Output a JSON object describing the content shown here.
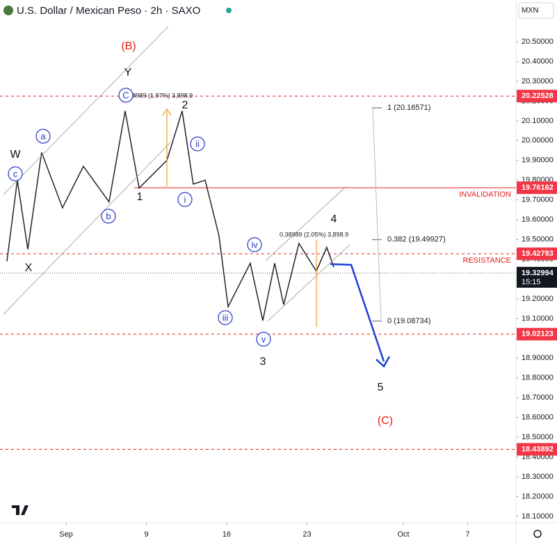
{
  "chart_data": {
    "type": "line",
    "title": "U.S. Dollar / Mexican Peso · 2h · SAXO",
    "currency": "MXN",
    "color": "#1e222d",
    "x": [
      -3.68,
      -3.03,
      -2.38,
      -1.52,
      -0.22,
      1.08,
      2.68,
      3.68,
      4.55,
      6.28,
      7.23,
      7.92,
      8.66,
      9.52,
      10.09,
      11.47,
      12.25,
      12.99,
      13.55,
      14.5,
      15.58,
      16.23,
      16.67
    ],
    "values": [
      19.39,
      19.8,
      19.45,
      19.94,
      19.66,
      19.87,
      19.69,
      20.15,
      19.76,
      19.9,
      20.15,
      19.78,
      19.8,
      19.52,
      19.16,
      19.38,
      19.09,
      19.38,
      19.17,
      19.48,
      19.34,
      19.46,
      19.36
    ],
    "xlim": [
      -4.11,
      28.01
    ],
    "ylim": [
      18.068,
      20.711
    ],
    "xticks": [
      {
        "value": 0,
        "label": "Sep"
      },
      {
        "value": 5,
        "label": "9"
      },
      {
        "value": 10,
        "label": "16"
      },
      {
        "value": 15,
        "label": "23"
      },
      {
        "value": 21,
        "label": "Oct"
      },
      {
        "value": 25,
        "label": "7"
      }
    ],
    "yticks": [
      {
        "value": 18.1,
        "label": "18.10000"
      },
      {
        "value": 18.2,
        "label": "18.20000"
      },
      {
        "value": 18.3,
        "label": "18.30000"
      },
      {
        "value": 18.4,
        "label": "18.40000"
      },
      {
        "value": 18.5,
        "label": "18.50000"
      },
      {
        "value": 18.6,
        "label": "18.60000"
      },
      {
        "value": 18.7,
        "label": "18.70000"
      },
      {
        "value": 18.8,
        "label": "18.80000"
      },
      {
        "value": 18.9,
        "label": "18.90000"
      },
      {
        "value": 19.0,
        "label": "19.00000"
      },
      {
        "value": 19.1,
        "label": "19.10000"
      },
      {
        "value": 19.2,
        "label": "19.20000"
      },
      {
        "value": 19.3,
        "label": "19.30000"
      },
      {
        "value": 19.4,
        "label": "19.40000"
      },
      {
        "value": 19.5,
        "label": "19.50000"
      },
      {
        "value": 19.6,
        "label": "19.60000"
      },
      {
        "value": 19.7,
        "label": "19.70000"
      },
      {
        "value": 19.8,
        "label": "19.80000"
      },
      {
        "value": 19.9,
        "label": "19.90000"
      },
      {
        "value": 20.0,
        "label": "20.00000"
      },
      {
        "value": 20.1,
        "label": "20.10000"
      },
      {
        "value": 20.2,
        "label": "20.20000"
      },
      {
        "value": 20.3,
        "label": "20.30000"
      },
      {
        "value": 20.4,
        "label": "20.40000"
      },
      {
        "value": 20.5,
        "label": "20.50000"
      }
    ],
    "levels": [
      {
        "value": 20.22528,
        "style": "dashed"
      },
      {
        "value": 19.76162,
        "style": "solid",
        "note": "INVALIDATION"
      },
      {
        "value": 19.42783,
        "style": "dashed",
        "note": "RESISTANCE"
      },
      {
        "value": 19.02123,
        "style": "dashed"
      },
      {
        "value": 18.43892,
        "style": "dashed"
      }
    ],
    "fib_levels": [
      {
        "value": 20.16571,
        "label": "1 (20.16571)"
      },
      {
        "value": 19.49927,
        "label": "0.382 (19.49927)"
      },
      {
        "value": 19.08734,
        "label": "0 (19.08734)"
      }
    ],
    "current_price": {
      "value": 19.32994,
      "countdown": "15:15"
    },
    "measurements": [
      "0.38989 (1.97%) 3,898.9",
      "0.38989 (2.05%) 3,898.9"
    ],
    "wave_labels": [
      {
        "text": "(B)",
        "circled": false,
        "color": "#e0201b"
      },
      {
        "text": "Y",
        "circled": false,
        "color": "#111"
      },
      {
        "text": "W",
        "circled": false,
        "color": "#111"
      },
      {
        "text": "X",
        "circled": false,
        "color": "#111"
      },
      {
        "text": "c",
        "circled": true,
        "color": "#2235c8"
      },
      {
        "text": "a",
        "circled": true,
        "color": "#2235c8"
      },
      {
        "text": "b",
        "circled": true,
        "color": "#2235c8"
      },
      {
        "text": "C",
        "circled": true,
        "color": "#2235c8"
      },
      {
        "text": "2",
        "circled": false,
        "color": "#111"
      },
      {
        "text": "ii",
        "circled": true,
        "color": "#2235c8"
      },
      {
        "text": "1",
        "circled": false,
        "color": "#111"
      },
      {
        "text": "i",
        "circled": true,
        "color": "#2235c8"
      },
      {
        "text": "iv",
        "circled": true,
        "color": "#2235c8"
      },
      {
        "text": "4",
        "circled": false,
        "color": "#111"
      },
      {
        "text": "iii",
        "circled": true,
        "color": "#2235c8"
      },
      {
        "text": "v",
        "circled": true,
        "color": "#2235c8"
      },
      {
        "text": "3",
        "circled": false,
        "color": "#111"
      },
      {
        "text": "5",
        "circled": false,
        "color": "#111"
      },
      {
        "text": "(C)",
        "circled": false,
        "color": "#e0201b"
      }
    ]
  }
}
